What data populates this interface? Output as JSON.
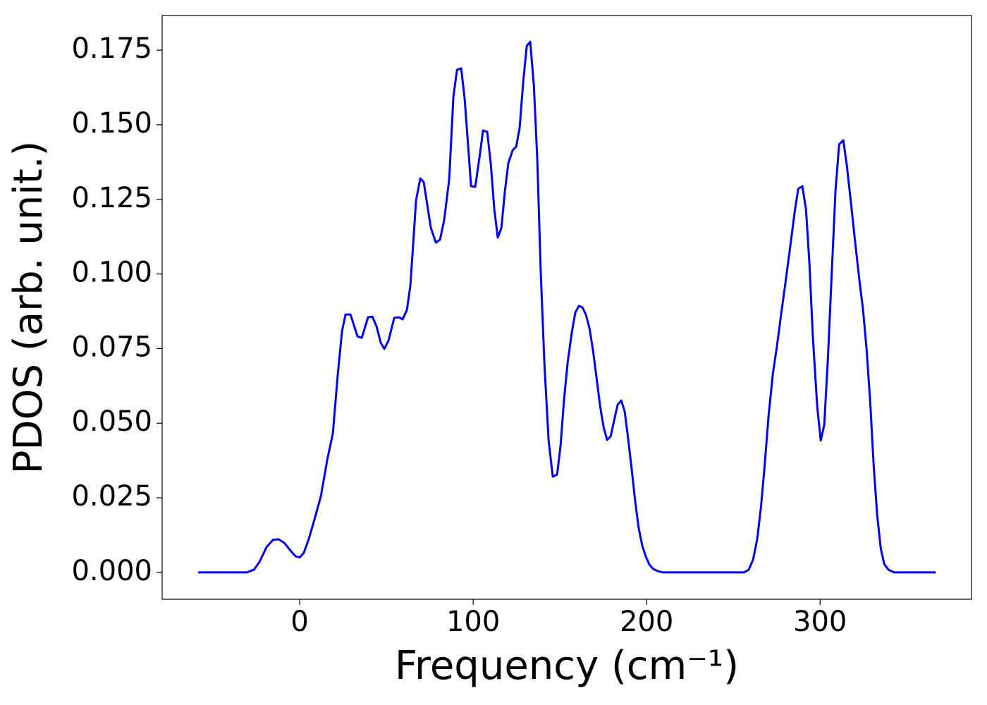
{
  "chart_data": {
    "type": "line",
    "x_label": "Frequency (cm⁻¹)",
    "y_label": "PDOS (arb. unit.)",
    "xlim": [
      -79.3,
      387.3
    ],
    "ylim": [
      -0.009,
      0.1866
    ],
    "xticks": [
      0,
      100,
      200,
      300
    ],
    "yticks": [
      {
        "value": 0,
        "label": "0.000"
      },
      {
        "value": 0.025,
        "label": "0.025"
      },
      {
        "value": 0.05,
        "label": "0.050"
      },
      {
        "value": 0.075,
        "label": "0.075"
      },
      {
        "value": 0.1,
        "label": "0.100"
      },
      {
        "value": 0.125,
        "label": "0.125"
      },
      {
        "value": 0.15,
        "label": "0.150"
      },
      {
        "value": 0.175,
        "label": "0.175"
      }
    ],
    "grid": false,
    "x": [
      -58.5,
      -30.5,
      -26.4,
      -23.2,
      -19.1,
      -15.4,
      -12.2,
      -8.9,
      -5.3,
      -2.4,
      0,
      2.4,
      5.3,
      8.5,
      12.2,
      15.9,
      19.1,
      22.0,
      24.4,
      26.4,
      29.3,
      33.3,
      35.8,
      39.4,
      41.9,
      44.3,
      46.7,
      48.8,
      51.2,
      54.5,
      57.3,
      59.3,
      61.8,
      63.8,
      67.1,
      69.5,
      71.5,
      75.6,
      78.5,
      80.9,
      83.3,
      86.2,
      88.6,
      90.7,
      93.1,
      95.1,
      97.2,
      98.8,
      101.2,
      103.7,
      105.7,
      108.1,
      110.2,
      112.2,
      114.2,
      116.3,
      118.3,
      120.3,
      122.8,
      124.8,
      126.8,
      128.9,
      130.9,
      132.9,
      135.0,
      137.0,
      139.0,
      141.1,
      143.5,
      145.9,
      148.4,
      150.4,
      152.4,
      154.5,
      156.9,
      158.9,
      161.0,
      163.0,
      165.0,
      167.1,
      169.1,
      171.1,
      173.2,
      175.2,
      177.2,
      179.3,
      181.3,
      183.3,
      185.4,
      187.4,
      189.4,
      191.5,
      193.5,
      195.5,
      197.6,
      199.6,
      201.6,
      203.7,
      206.1,
      209.3,
      256.1,
      258.9,
      261.4,
      263.8,
      265.9,
      267.9,
      270.3,
      272.8,
      275.2,
      277.6,
      280.1,
      282.5,
      285.4,
      287.4,
      289.8,
      291.9,
      293.9,
      295.9,
      298.4,
      300.4,
      302.4,
      304.5,
      306.5,
      308.9,
      311.0,
      313.4,
      315.4,
      317.9,
      320.3,
      322.8,
      324.8,
      326.8,
      328.9,
      330.9,
      332.9,
      335.0,
      337.0,
      339.4,
      342.7,
      366.7
    ],
    "series": [
      {
        "color": "#0000ee",
        "values": [
          0,
          0,
          0.0009,
          0.0035,
          0.0085,
          0.0109,
          0.0111,
          0.0099,
          0.0073,
          0.0054,
          0.005,
          0.0066,
          0.0113,
          0.0177,
          0.0255,
          0.0378,
          0.0465,
          0.0666,
          0.0808,
          0.0864,
          0.0864,
          0.0791,
          0.0786,
          0.0855,
          0.0857,
          0.0824,
          0.077,
          0.0749,
          0.0777,
          0.0853,
          0.0855,
          0.0848,
          0.0879,
          0.0961,
          0.1247,
          0.132,
          0.1308,
          0.1155,
          0.1105,
          0.1115,
          0.1181,
          0.1318,
          0.1594,
          0.1684,
          0.1689,
          0.1587,
          0.1422,
          0.1294,
          0.1292,
          0.1393,
          0.1481,
          0.1476,
          0.1367,
          0.1216,
          0.1122,
          0.1155,
          0.1278,
          0.1372,
          0.1415,
          0.1426,
          0.149,
          0.1646,
          0.1764,
          0.1778,
          0.1632,
          0.138,
          0.1001,
          0.0697,
          0.0442,
          0.0321,
          0.0328,
          0.0425,
          0.0579,
          0.0704,
          0.0805,
          0.0871,
          0.0893,
          0.0888,
          0.0864,
          0.0817,
          0.0744,
          0.0654,
          0.0557,
          0.0487,
          0.0444,
          0.0456,
          0.051,
          0.0562,
          0.0576,
          0.0538,
          0.0446,
          0.034,
          0.0234,
          0.0146,
          0.0087,
          0.0052,
          0.0026,
          0.0012,
          0.0005,
          0,
          0,
          0.0009,
          0.0043,
          0.0113,
          0.0217,
          0.0347,
          0.0524,
          0.0666,
          0.076,
          0.0867,
          0.0973,
          0.1079,
          0.1209,
          0.1285,
          0.1294,
          0.1216,
          0.1032,
          0.0784,
          0.0553,
          0.0442,
          0.0494,
          0.0713,
          0.0973,
          0.128,
          0.1434,
          0.1448,
          0.1365,
          0.1233,
          0.1103,
          0.0973,
          0.0879,
          0.0749,
          0.0572,
          0.0359,
          0.0194,
          0.008,
          0.0028,
          0.0009,
          0,
          0
        ]
      }
    ]
  }
}
